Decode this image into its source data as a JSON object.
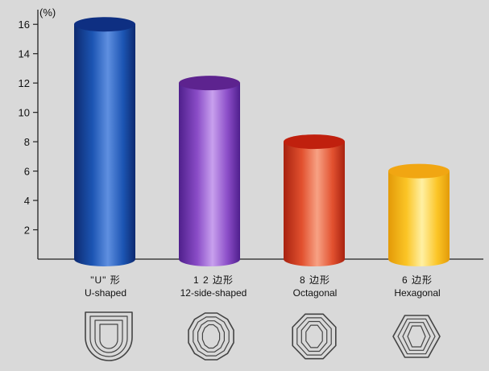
{
  "chart_data": {
    "type": "bar",
    "title": "",
    "xlabel": "",
    "ylabel": "",
    "unit_label": "(%)",
    "ylim": [
      0,
      17
    ],
    "yticks": [
      2,
      4,
      6,
      8,
      10,
      12,
      14,
      16
    ],
    "grid": false,
    "legend": "none",
    "bar_style": "3d-cylinder",
    "categories": [
      {
        "label_cn": "\"U\" 形",
        "label_en": "U-shaped"
      },
      {
        "label_cn": "1 2 边形",
        "label_en": "12-side-shaped"
      },
      {
        "label_cn": "8 边形",
        "label_en": "Octagonal"
      },
      {
        "label_cn": "6 边形",
        "label_en": "Hexagonal"
      }
    ],
    "values": [
      16,
      12,
      8,
      6
    ],
    "colors": [
      {
        "dark": "#0d2a70",
        "mid": "#1c55b3",
        "light": "#5f8fe0",
        "top": "#0e2f82"
      },
      {
        "dark": "#4f1f8c",
        "mid": "#8a4cc7",
        "light": "#c8a0ee",
        "top": "#5d238f"
      },
      {
        "dark": "#a82210",
        "mid": "#e2512f",
        "light": "#f7a184",
        "top": "#c0200e"
      },
      {
        "dark": "#e39a08",
        "mid": "#fbc526",
        "light": "#fff0a3",
        "top": "#f1a612"
      }
    ],
    "icon_names": [
      "u-shaped-section-icon",
      "12-side-section-icon",
      "octagonal-section-icon",
      "hexagonal-section-icon"
    ]
  }
}
